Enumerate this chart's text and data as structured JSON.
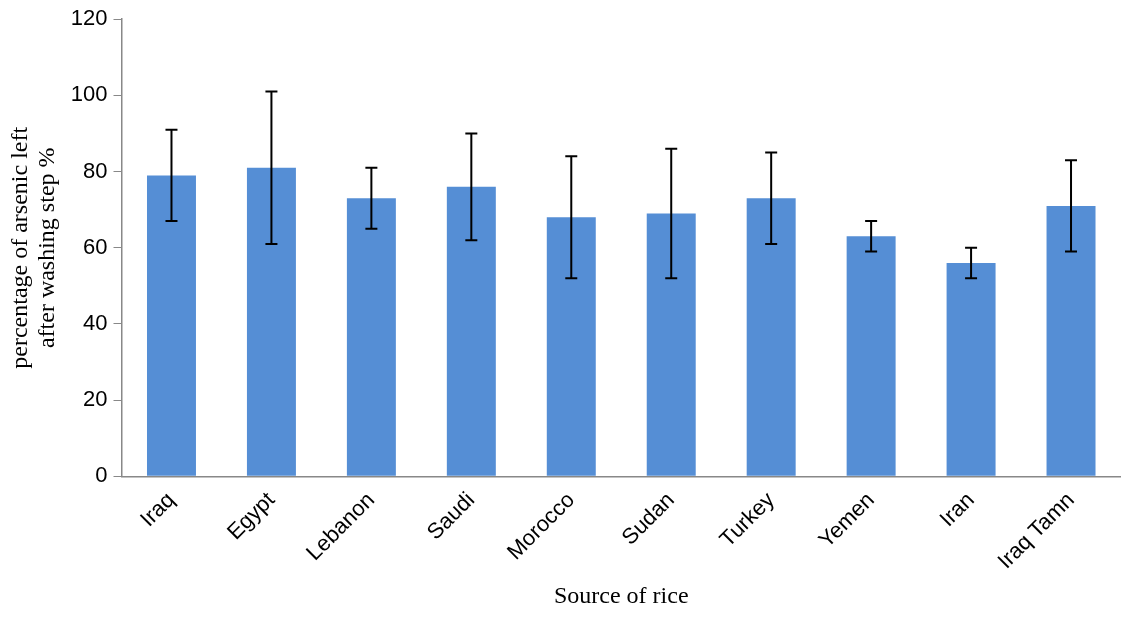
{
  "chart_data": {
    "type": "bar",
    "xlabel": "Source of rice",
    "ylabel": "percentage of arsenic left after washing step %",
    "categories": [
      "Iraq",
      "Egypt",
      "Lebanon",
      "Saudi",
      "Morocco",
      "Sudan",
      "Turkey",
      "Yemen",
      "Iran",
      "Iraq Tamn"
    ],
    "values": [
      79,
      81,
      73,
      76,
      68,
      69,
      73,
      63,
      56,
      71
    ],
    "errors": [
      12,
      20,
      8,
      14,
      16,
      17,
      12,
      4,
      4,
      12
    ],
    "color": "#558ed5",
    "ylim": [
      0,
      120
    ],
    "yticks": [
      0,
      20,
      40,
      60,
      80,
      100,
      120
    ],
    "grid": false,
    "legend": false
  }
}
